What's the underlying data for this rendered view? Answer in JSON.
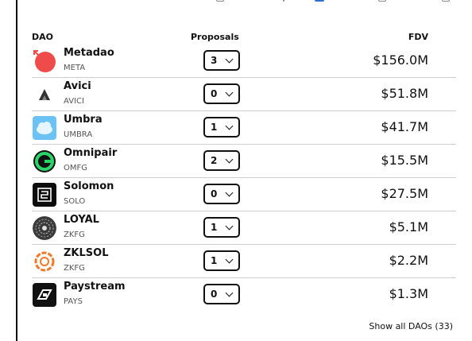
{
  "table": {
    "col_dao": "DAO",
    "col_proposals": "Proposals",
    "col_fdv": "FDV"
  },
  "daos": [
    {
      "name": "Metadao",
      "ticker": "META",
      "proposals": "3",
      "fdv": "$156.0M",
      "logo_icon": "metadao-logo-icon",
      "logo_color": "#f04b4b"
    },
    {
      "name": "Avici",
      "ticker": "AVICI",
      "proposals": "0",
      "fdv": "$51.8M",
      "logo_icon": "avici-logo-icon",
      "logo_color": "#222222"
    },
    {
      "name": "Umbra",
      "ticker": "UMBRA",
      "proposals": "1",
      "fdv": "$41.7M",
      "logo_icon": "umbra-logo-icon",
      "logo_color": "#3fa8f0"
    },
    {
      "name": "Omnipair",
      "ticker": "OMFG",
      "proposals": "2",
      "fdv": "$15.5M",
      "logo_icon": "omnipair-logo-icon",
      "logo_color": "#2bd46a"
    },
    {
      "name": "Solomon",
      "ticker": "SOLO",
      "proposals": "0",
      "fdv": "$27.5M",
      "logo_icon": "solomon-logo-icon",
      "logo_color": "#0d0d0d"
    },
    {
      "name": "LOYAL",
      "ticker": "ZKFG",
      "proposals": "1",
      "fdv": "$5.1M",
      "logo_icon": "loyal-logo-icon",
      "logo_color": "#3a3a3a"
    },
    {
      "name": "ZKLSOL",
      "ticker": "ZKFG",
      "proposals": "1",
      "fdv": "$2.2M",
      "logo_icon": "zklsol-logo-icon",
      "logo_color": "#f07a2a"
    },
    {
      "name": "Paystream",
      "ticker": "PAYS",
      "proposals": "0",
      "fdv": "$1.3M",
      "logo_icon": "paystream-logo-icon",
      "logo_color": "#111111"
    }
  ],
  "footer": {
    "show_all": "Show all DAOs (33)"
  }
}
